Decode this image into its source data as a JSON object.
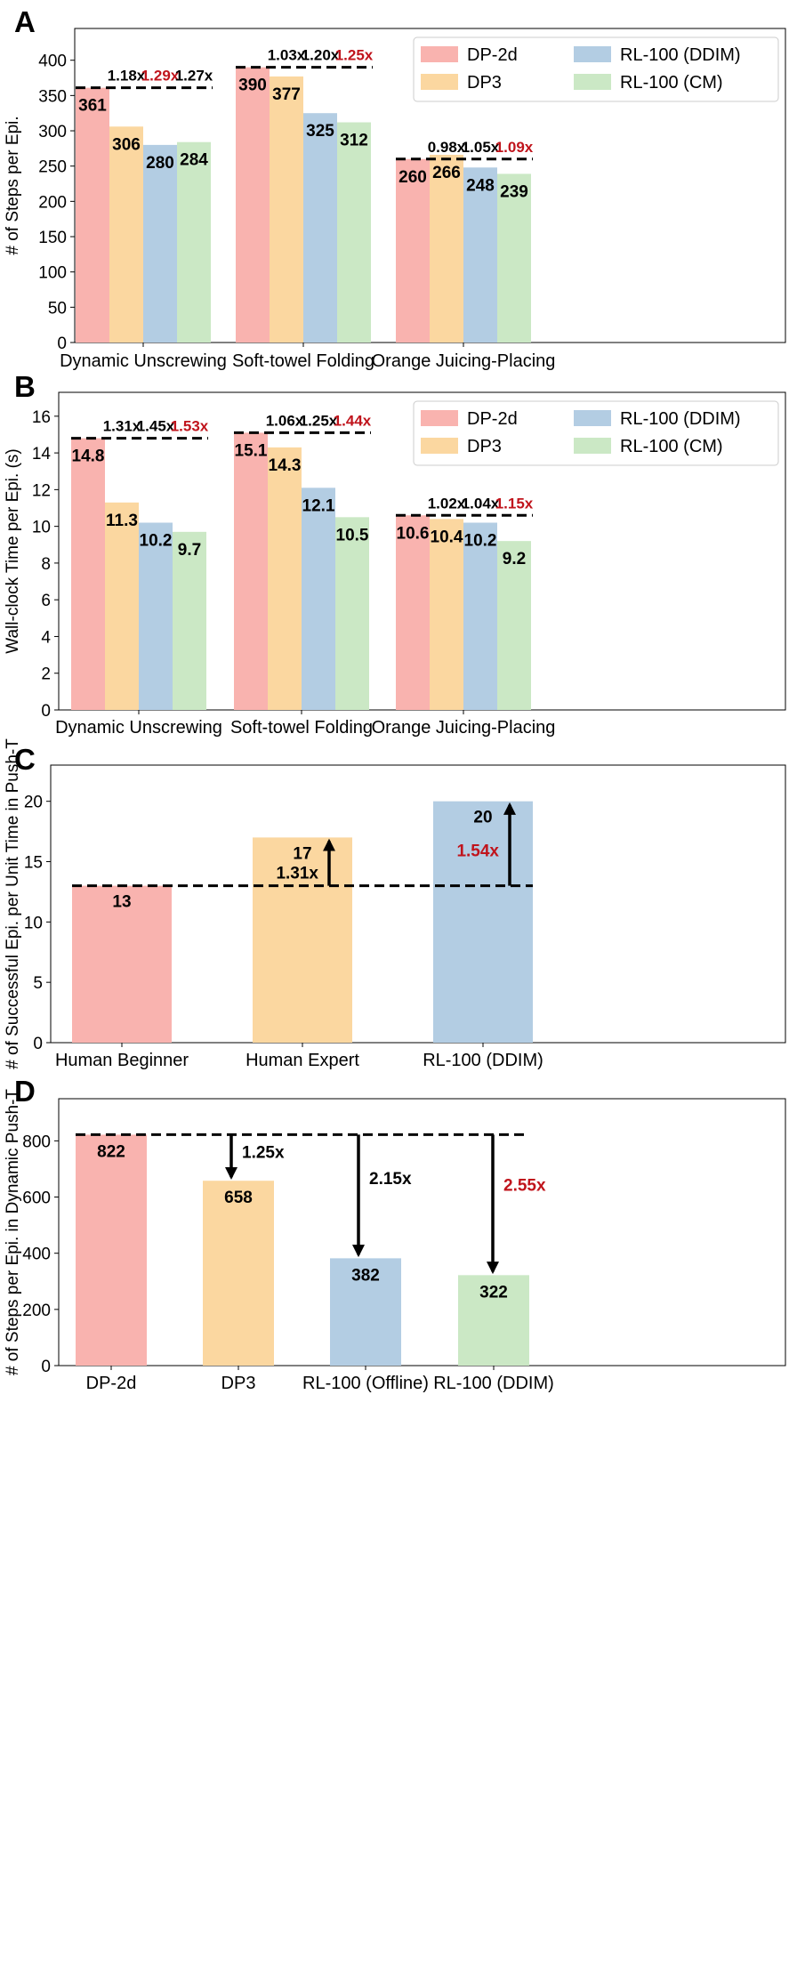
{
  "colors": {
    "dp2d": "#f9b3af",
    "dp3": "#fbd7a0",
    "rl_ddim": "#b3cde3",
    "rl_cm": "#cbe8c5",
    "highlight": "#c0141c"
  },
  "chart_data": [
    {
      "id": "A",
      "panel_label": "A",
      "type": "bar",
      "ylabel": "# of Steps per Epi.",
      "ylim": [
        0,
        445
      ],
      "yticks": [
        0,
        50,
        100,
        150,
        200,
        250,
        300,
        350,
        400
      ],
      "categories": [
        "Dynamic Unscrewing",
        "Soft-towel Folding",
        "Orange Juicing-Placing"
      ],
      "series": [
        {
          "name": "DP-2d",
          "color_key": "dp2d",
          "values": [
            361,
            390,
            260
          ]
        },
        {
          "name": "DP3",
          "color_key": "dp3",
          "values": [
            306,
            377,
            266
          ]
        },
        {
          "name": "RL-100 (DDIM)",
          "color_key": "rl_ddim",
          "values": [
            280,
            325,
            248
          ]
        },
        {
          "name": "RL-100 (CM)",
          "color_key": "rl_cm",
          "values": [
            284,
            312,
            239
          ]
        }
      ],
      "value_labels": [
        [
          "361",
          "306",
          "280",
          "284"
        ],
        [
          "390",
          "377",
          "325",
          "312"
        ],
        [
          "260",
          "266",
          "248",
          "239"
        ]
      ],
      "ratios": [
        [
          "",
          "1.18x",
          "1.29x",
          "1.27x"
        ],
        [
          "",
          "1.03x",
          "1.20x",
          "1.25x"
        ],
        [
          "",
          "0.98x",
          "1.05x",
          "1.09x"
        ]
      ],
      "best_ratio": [
        2,
        3,
        3
      ],
      "legend": "top-right, 2 columns"
    },
    {
      "id": "B",
      "panel_label": "B",
      "type": "bar",
      "ylabel": "Wall-clock Time per Epi. (s)",
      "ylim": [
        0,
        17.3
      ],
      "yticks": [
        0,
        2,
        4,
        6,
        8,
        10,
        12,
        14,
        16
      ],
      "categories": [
        "Dynamic Unscrewing",
        "Soft-towel Folding",
        "Orange Juicing-Placing"
      ],
      "series": [
        {
          "name": "DP-2d",
          "color_key": "dp2d",
          "values": [
            14.8,
            15.1,
            10.6
          ]
        },
        {
          "name": "DP3",
          "color_key": "dp3",
          "values": [
            11.3,
            14.3,
            10.4
          ]
        },
        {
          "name": "RL-100 (DDIM)",
          "color_key": "rl_ddim",
          "values": [
            10.2,
            12.1,
            10.2
          ]
        },
        {
          "name": "RL-100 (CM)",
          "color_key": "rl_cm",
          "values": [
            9.7,
            10.5,
            9.2
          ]
        }
      ],
      "value_labels": [
        [
          "14.8",
          "11.3",
          "10.2",
          "9.7"
        ],
        [
          "15.1",
          "14.3",
          "12.1",
          "10.5"
        ],
        [
          "10.6",
          "10.4",
          "10.2",
          "9.2"
        ]
      ],
      "ratios": [
        [
          "",
          "1.31x",
          "1.45x",
          "1.53x"
        ],
        [
          "",
          "1.06x",
          "1.25x",
          "1.44x"
        ],
        [
          "",
          "1.02x",
          "1.04x",
          "1.15x"
        ]
      ],
      "best_ratio": [
        3,
        3,
        3
      ],
      "legend": "top-right, 2 columns"
    },
    {
      "id": "C",
      "panel_label": "C",
      "type": "bar",
      "ylabel": "# of Successful Epi. per Unit Time in Push-T",
      "ylim": [
        0,
        23
      ],
      "yticks": [
        0,
        5,
        10,
        15,
        20
      ],
      "categories": [
        "Human Beginner",
        "Human Expert",
        "RL-100 (DDIM)"
      ],
      "color_keys": [
        "dp2d",
        "dp3",
        "rl_ddim"
      ],
      "values": [
        13,
        17,
        20
      ],
      "value_labels": [
        "13",
        "17",
        "20"
      ],
      "ratios": [
        "",
        "1.31x",
        "1.54x"
      ],
      "best_ratio": 2
    },
    {
      "id": "D",
      "panel_label": "D",
      "type": "bar",
      "ylabel": "# of Steps per Epi. in Dynamic Push-T",
      "ylim": [
        0,
        950
      ],
      "yticks": [
        0,
        200,
        400,
        600,
        800
      ],
      "categories": [
        "DP-2d",
        "DP3",
        "RL-100 (Offline)",
        "RL-100 (DDIM)"
      ],
      "color_keys": [
        "dp2d",
        "dp3",
        "rl_ddim",
        "rl_cm"
      ],
      "values": [
        822,
        658,
        382,
        322
      ],
      "value_labels": [
        "822",
        "658",
        "382",
        "322"
      ],
      "ratios": [
        "",
        "1.25x",
        "2.15x",
        "2.55x"
      ],
      "best_ratio": 3
    }
  ]
}
